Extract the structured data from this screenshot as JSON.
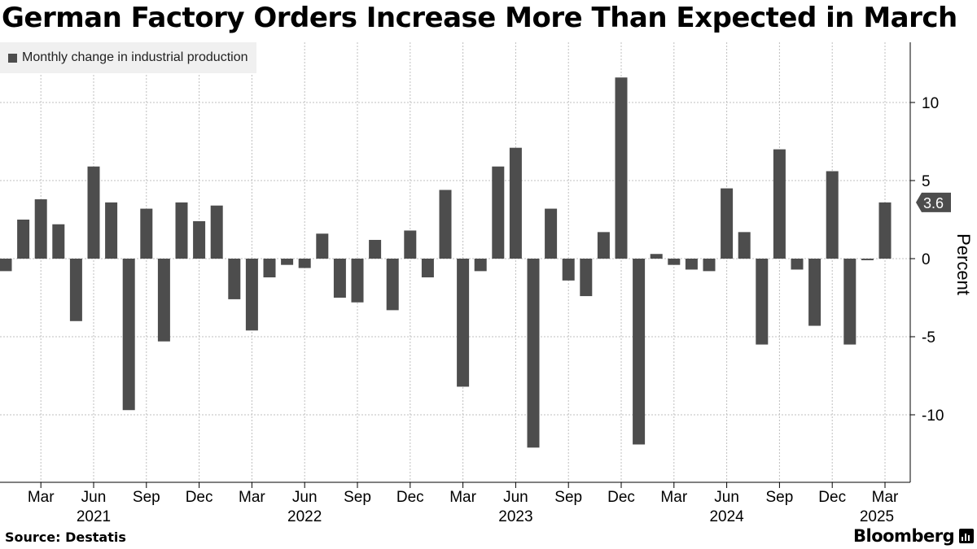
{
  "title": "German Factory Orders Increase More Than Expected in March",
  "legend_label": "Monthly change in industrial production",
  "source": "Source:  Destatis",
  "brand": "Bloomberg",
  "colors": {
    "bar": "#4d4d4d",
    "grid": "#bfbfbf",
    "axis": "#000000",
    "label_bg": "#4d4d4d"
  },
  "chart_data": {
    "type": "bar",
    "ylabel": "Percent",
    "ylim": [
      -14,
      14
    ],
    "yticks": [
      10,
      5,
      0,
      -5,
      -10
    ],
    "grid": true,
    "legend_position": "top-left",
    "last_value_label": "3.6",
    "x_month_ticks": [
      {
        "index": 2,
        "label": "Mar"
      },
      {
        "index": 5,
        "label": "Jun"
      },
      {
        "index": 8,
        "label": "Sep"
      },
      {
        "index": 11,
        "label": "Dec"
      },
      {
        "index": 14,
        "label": "Mar"
      },
      {
        "index": 17,
        "label": "Jun"
      },
      {
        "index": 20,
        "label": "Sep"
      },
      {
        "index": 23,
        "label": "Dec"
      },
      {
        "index": 26,
        "label": "Mar"
      },
      {
        "index": 29,
        "label": "Jun"
      },
      {
        "index": 32,
        "label": "Sep"
      },
      {
        "index": 35,
        "label": "Dec"
      },
      {
        "index": 38,
        "label": "Mar"
      },
      {
        "index": 41,
        "label": "Jun"
      },
      {
        "index": 44,
        "label": "Sep"
      },
      {
        "index": 47,
        "label": "Dec"
      },
      {
        "index": 50,
        "label": "Mar"
      }
    ],
    "x_year_labels": [
      {
        "index": 5,
        "label": "2021"
      },
      {
        "index": 17,
        "label": "2022"
      },
      {
        "index": 29,
        "label": "2023"
      },
      {
        "index": 41,
        "label": "2024"
      },
      {
        "index": 50,
        "label": "2025"
      }
    ],
    "categories": [
      "2021-01",
      "2021-02",
      "2021-03",
      "2021-04",
      "2021-05",
      "2021-06",
      "2021-07",
      "2021-08",
      "2021-09",
      "2021-10",
      "2021-11",
      "2021-12",
      "2022-01",
      "2022-02",
      "2022-03",
      "2022-04",
      "2022-05",
      "2022-06",
      "2022-07",
      "2022-08",
      "2022-09",
      "2022-10",
      "2022-11",
      "2022-12",
      "2023-01",
      "2023-02",
      "2023-03",
      "2023-04",
      "2023-05",
      "2023-06",
      "2023-07",
      "2023-08",
      "2023-09",
      "2023-10",
      "2023-11",
      "2023-12",
      "2024-01",
      "2024-02",
      "2024-03",
      "2024-04",
      "2024-05",
      "2024-06",
      "2024-07",
      "2024-08",
      "2024-09",
      "2024-10",
      "2024-11",
      "2024-12",
      "2025-01",
      "2025-02",
      "2025-03"
    ],
    "values": [
      -0.8,
      2.5,
      3.8,
      2.2,
      -4.0,
      5.9,
      3.6,
      -9.7,
      3.2,
      -5.3,
      3.6,
      2.4,
      3.4,
      -2.6,
      -4.6,
      -1.2,
      -0.4,
      -0.6,
      1.6,
      -2.5,
      -2.8,
      1.2,
      -3.3,
      1.8,
      -1.2,
      4.4,
      -8.2,
      -0.8,
      5.9,
      7.1,
      -12.1,
      3.2,
      -1.4,
      -2.4,
      1.7,
      11.6,
      -11.9,
      0.3,
      -0.4,
      -0.7,
      -0.8,
      4.5,
      1.7,
      -5.5,
      7.0,
      -0.7,
      -4.3,
      5.6,
      -5.5,
      -0.1,
      3.6
    ]
  }
}
